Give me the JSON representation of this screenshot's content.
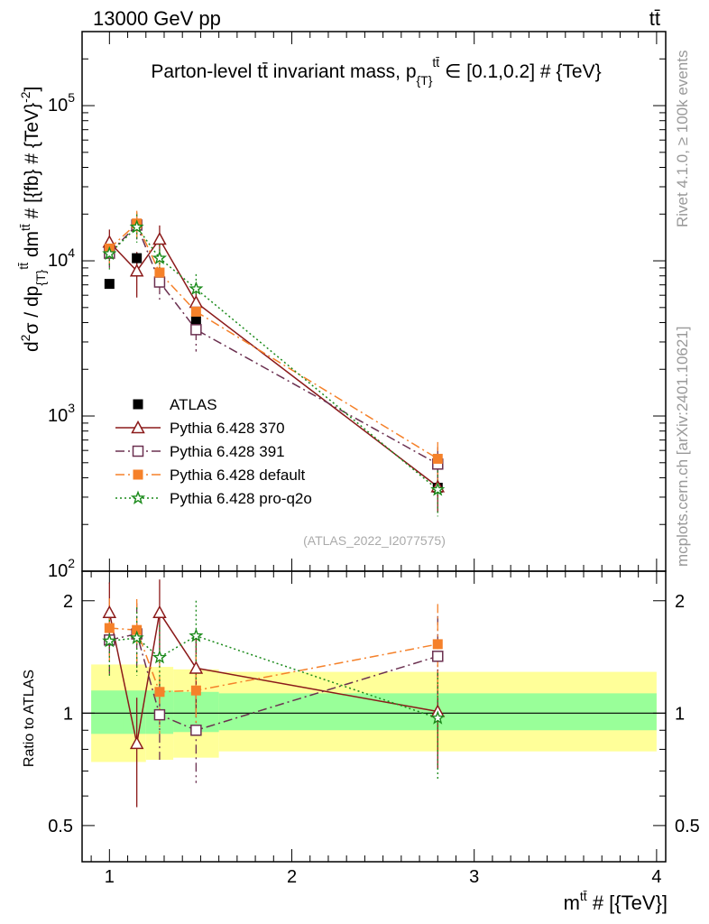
{
  "header": {
    "left": "13000 GeV pp",
    "right": "tt̄"
  },
  "side_labels": {
    "rivet": "Rivet 4.1.0, ≥ 100k events",
    "mcplots": "mcplots.cern.ch [arXiv:2401.10621]"
  },
  "chart_data": [
    {
      "type": "scatter",
      "title": "Parton-level tt̄ invariant mass, p{T}tt̄ ∈ [0.1,0.2] # {TeV}",
      "title_parts": {
        "main": "Parton-level tt̄ invariant mass, p",
        "sub": "{T}",
        "sup": "tt̄",
        "tail": " ∈ [0.1,0.2] # {TeV}"
      },
      "ylabel": "d²σ / dp{T}tt̄ dmtt̄ # [{fb} # {TeV}-2]",
      "ylabel_parts": {
        "a": "d",
        "a_sup": "2",
        "b": "σ / dp",
        "b_sub": "{T}",
        "b_sup": "tt̄",
        "c": " dm",
        "c_sup": "tt̄",
        "d": " # [{fb} # {TeV}",
        "d_sup": "-2",
        "e": "]"
      },
      "yscale": "log",
      "ylim": [
        100,
        300000
      ],
      "xlim": [
        0.85,
        4.05
      ],
      "yticks": [
        {
          "value": 100,
          "base": "10",
          "exp": "2"
        },
        {
          "value": 1000,
          "base": "10",
          "exp": "3"
        },
        {
          "value": 10000,
          "base": "10",
          "exp": "4"
        },
        {
          "value": 100000,
          "base": "10",
          "exp": "5"
        }
      ],
      "reference": "(ATLAS_2022_I2077575)",
      "legend_position": "lower-left",
      "series": [
        {
          "name": "ATLAS",
          "color": "#000000",
          "marker": "filled-square",
          "line": "none",
          "points": [
            {
              "x": 1.0,
              "y": 7100,
              "err": 0
            },
            {
              "x": 1.15,
              "y": 10400,
              "err": 900
            },
            {
              "x": 1.275,
              "y": 7400,
              "err": 700
            },
            {
              "x": 1.475,
              "y": 4100,
              "err": 400
            },
            {
              "x": 2.8,
              "y": 345,
              "err": 40
            }
          ]
        },
        {
          "name": "Pythia 6.428 370",
          "color": "#8b1a1a",
          "marker": "open-triangle",
          "line": "solid",
          "points": [
            {
              "x": 1.0,
              "y": 13200,
              "err": 2700
            },
            {
              "x": 1.15,
              "y": 8600,
              "err": 2800
            },
            {
              "x": 1.275,
              "y": 13800,
              "err": 3100
            },
            {
              "x": 1.475,
              "y": 5400,
              "err": 1300
            },
            {
              "x": 2.8,
              "y": 350,
              "err": 110
            }
          ]
        },
        {
          "name": "Pythia 6.428 391",
          "color": "#6b3050",
          "marker": "open-square",
          "line": "dashdot",
          "points": [
            {
              "x": 1.0,
              "y": 11200,
              "err": 2200
            },
            {
              "x": 1.15,
              "y": 17000,
              "err": 3500
            },
            {
              "x": 1.275,
              "y": 7300,
              "err": 1800
            },
            {
              "x": 1.475,
              "y": 3600,
              "err": 1000
            },
            {
              "x": 2.8,
              "y": 490,
              "err": 140
            }
          ]
        },
        {
          "name": "Pythia 6.428 default",
          "color": "#f5812a",
          "marker": "filled-square",
          "line": "dashdot",
          "points": [
            {
              "x": 1.0,
              "y": 12000,
              "err": 2400
            },
            {
              "x": 1.15,
              "y": 17400,
              "err": 3600
            },
            {
              "x": 1.275,
              "y": 8400,
              "err": 1900
            },
            {
              "x": 1.475,
              "y": 4700,
              "err": 1200
            },
            {
              "x": 2.8,
              "y": 530,
              "err": 150
            }
          ]
        },
        {
          "name": "Pythia 6.428 pro-q2o",
          "color": "#1a8a1a",
          "marker": "star",
          "line": "dotted",
          "points": [
            {
              "x": 1.0,
              "y": 11100,
              "err": 2300
            },
            {
              "x": 1.15,
              "y": 16500,
              "err": 3400
            },
            {
              "x": 1.275,
              "y": 10400,
              "err": 2300
            },
            {
              "x": 1.475,
              "y": 6600,
              "err": 1600
            },
            {
              "x": 2.8,
              "y": 335,
              "err": 110
            }
          ]
        }
      ]
    },
    {
      "type": "scatter",
      "title": "",
      "ylabel": "Ratio to ATLAS",
      "xlabel": "mtt̄ # [{TeV}]",
      "xlabel_parts": {
        "main": "m",
        "sup": "tt̄",
        "tail": " # [{TeV}]"
      },
      "yscale": "log",
      "ylim": [
        0.4,
        2.4
      ],
      "xlim": [
        0.85,
        4.05
      ],
      "xticks": [
        1,
        2,
        3,
        4
      ],
      "yticks": [
        {
          "value": 0.5,
          "label": "0.5"
        },
        {
          "value": 1,
          "label": "1"
        },
        {
          "value": 2,
          "label": "2"
        }
      ],
      "bands": [
        {
          "x0": 0.9,
          "x1": 1.075,
          "stat_lo": 0.88,
          "stat_hi": 1.15,
          "tot_lo": 0.74,
          "tot_hi": 1.35
        },
        {
          "x0": 1.075,
          "x1": 1.2,
          "stat_lo": 0.88,
          "stat_hi": 1.15,
          "tot_lo": 0.74,
          "tot_hi": 1.35
        },
        {
          "x0": 1.2,
          "x1": 1.35,
          "stat_lo": 0.88,
          "stat_hi": 1.15,
          "tot_lo": 0.75,
          "tot_hi": 1.33
        },
        {
          "x0": 1.35,
          "x1": 1.6,
          "stat_lo": 0.89,
          "stat_hi": 1.14,
          "tot_lo": 0.76,
          "tot_hi": 1.31
        },
        {
          "x0": 1.6,
          "x1": 4.0,
          "stat_lo": 0.9,
          "stat_hi": 1.13,
          "tot_lo": 0.79,
          "tot_hi": 1.29
        }
      ],
      "series": [
        {
          "name": "Pythia 6.428 370",
          "color": "#8b1a1a",
          "marker": "open-triangle",
          "line": "solid",
          "points": [
            {
              "x": 1.0,
              "y": 1.86,
              "err": 0.38
            },
            {
              "x": 1.15,
              "y": 0.83,
              "err": 0.27
            },
            {
              "x": 1.275,
              "y": 1.86,
              "err": 0.42
            },
            {
              "x": 1.475,
              "y": 1.32,
              "err": 0.3
            },
            {
              "x": 2.8,
              "y": 1.01,
              "err": 0.3
            }
          ]
        },
        {
          "name": "Pythia 6.428 391",
          "color": "#6b3050",
          "marker": "open-square",
          "line": "dashdot",
          "points": [
            {
              "x": 1.0,
              "y": 1.57,
              "err": 0.31
            },
            {
              "x": 1.15,
              "y": 1.63,
              "err": 0.34
            },
            {
              "x": 1.275,
              "y": 0.99,
              "err": 0.24
            },
            {
              "x": 1.475,
              "y": 0.9,
              "err": 0.25
            },
            {
              "x": 2.8,
              "y": 1.42,
              "err": 0.4
            }
          ]
        },
        {
          "name": "Pythia 6.428 default",
          "color": "#f5812a",
          "marker": "filled-square",
          "line": "dashdot",
          "points": [
            {
              "x": 1.0,
              "y": 1.69,
              "err": 0.34
            },
            {
              "x": 1.15,
              "y": 1.67,
              "err": 0.35
            },
            {
              "x": 1.275,
              "y": 1.14,
              "err": 0.26
            },
            {
              "x": 1.475,
              "y": 1.15,
              "err": 0.29
            },
            {
              "x": 2.8,
              "y": 1.53,
              "err": 0.43
            }
          ]
        },
        {
          "name": "Pythia 6.428 pro-q2o",
          "color": "#1a8a1a",
          "marker": "star",
          "line": "dotted",
          "points": [
            {
              "x": 1.0,
              "y": 1.56,
              "err": 0.32
            },
            {
              "x": 1.15,
              "y": 1.59,
              "err": 0.33
            },
            {
              "x": 1.275,
              "y": 1.41,
              "err": 0.31
            },
            {
              "x": 1.475,
              "y": 1.61,
              "err": 0.39
            },
            {
              "x": 2.8,
              "y": 0.97,
              "err": 0.31
            }
          ]
        }
      ]
    }
  ]
}
